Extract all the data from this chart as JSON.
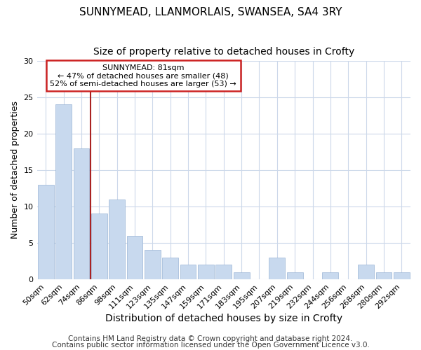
{
  "title": "SUNNYMEAD, LLANMORLAIS, SWANSEA, SA4 3RY",
  "subtitle": "Size of property relative to detached houses in Crofty",
  "xlabel": "Distribution of detached houses by size in Crofty",
  "ylabel": "Number of detached properties",
  "categories": [
    "50sqm",
    "62sqm",
    "74sqm",
    "86sqm",
    "98sqm",
    "111sqm",
    "123sqm",
    "135sqm",
    "147sqm",
    "159sqm",
    "171sqm",
    "183sqm",
    "195sqm",
    "207sqm",
    "219sqm",
    "232sqm",
    "244sqm",
    "256sqm",
    "268sqm",
    "280sqm",
    "292sqm"
  ],
  "values": [
    13,
    24,
    18,
    9,
    11,
    6,
    4,
    3,
    2,
    2,
    2,
    1,
    0,
    3,
    1,
    0,
    1,
    0,
    2,
    1,
    1
  ],
  "bar_color": "#c8d9ee",
  "bar_edge_color": "#9ab5d5",
  "vline_x_index": 2.5,
  "vline_color": "#aa2222",
  "ylim": [
    0,
    30
  ],
  "yticks": [
    0,
    5,
    10,
    15,
    20,
    25,
    30
  ],
  "annotation_title": "SUNNYMEAD: 81sqm",
  "annotation_line1": "← 47% of detached houses are smaller (48)",
  "annotation_line2": "52% of semi-detached houses are larger (53) →",
  "annotation_box_color": "#ffffff",
  "annotation_box_edge": "#cc2222",
  "footer1": "Contains HM Land Registry data © Crown copyright and database right 2024.",
  "footer2": "Contains public sector information licensed under the Open Government Licence v3.0.",
  "background_color": "#ffffff",
  "grid_color": "#ccd8ea",
  "title_fontsize": 11,
  "subtitle_fontsize": 10,
  "xlabel_fontsize": 10,
  "ylabel_fontsize": 9,
  "tick_fontsize": 8,
  "annotation_fontsize": 8,
  "footer_fontsize": 7.5
}
